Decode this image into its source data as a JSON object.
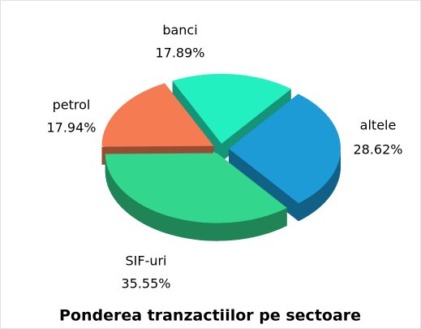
{
  "chart_data": {
    "type": "pie",
    "title": "Ponderea tranzactiilor pe sectoare",
    "categories": [
      "banci",
      "altele",
      "SIF-uri",
      "petrol"
    ],
    "values": [
      17.89,
      28.62,
      35.55,
      17.94
    ],
    "value_labels": [
      "17.89%",
      "28.62%",
      "35.55%",
      "17.94%"
    ],
    "colors": [
      "#22f0c0",
      "#1c9bd6",
      "#32d68c",
      "#f47b52"
    ]
  }
}
